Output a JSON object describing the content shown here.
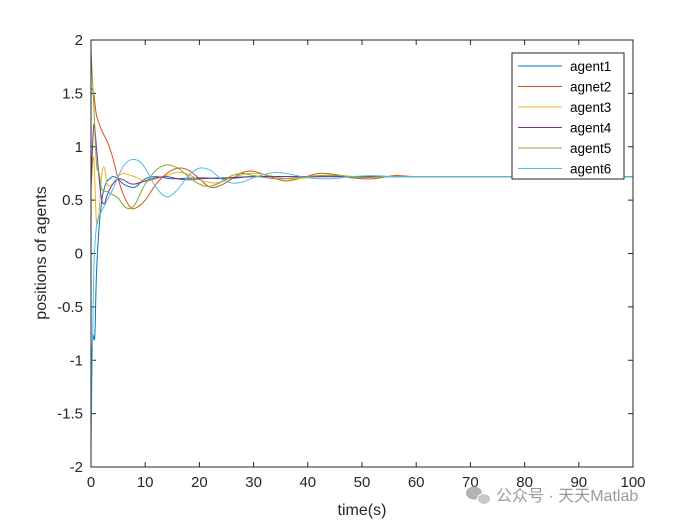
{
  "chart_data": {
    "type": "line",
    "xlabel": "time(s)",
    "ylabel": "positions of agents",
    "xlim": [
      0,
      100
    ],
    "ylim": [
      -2,
      2
    ],
    "xticks": [
      "0",
      "10",
      "20",
      "30",
      "40",
      "50",
      "60",
      "70",
      "80",
      "90",
      "100"
    ],
    "yticks": [
      "2",
      "1.5",
      "1",
      "0.5",
      "0",
      "-0.5",
      "-1",
      "-1.5",
      "-2"
    ],
    "grid": false,
    "legend_position": "top-right",
    "watermark": "公众号 · 天天Matlab",
    "series": [
      {
        "name": "agent1",
        "color": "#0072BD",
        "x": [
          0,
          0.3,
          0.7,
          1,
          1.5,
          2,
          2.5,
          3,
          3.5,
          4,
          5,
          6,
          8,
          10,
          12,
          15,
          20,
          25,
          30,
          40,
          50,
          60,
          70,
          80,
          100
        ],
        "y": [
          -1.45,
          -0.8,
          -0.78,
          -0.2,
          0.25,
          0.5,
          0.62,
          0.68,
          0.7,
          0.72,
          0.7,
          0.65,
          0.62,
          0.7,
          0.72,
          0.7,
          0.71,
          0.7,
          0.72,
          0.72,
          0.72,
          0.72,
          0.72,
          0.72,
          0.72
        ]
      },
      {
        "name": "agnet2",
        "color": "#D95319",
        "x": [
          0,
          0.5,
          1,
          2,
          3,
          4,
          5,
          6,
          7,
          8,
          10,
          12,
          14,
          16,
          18,
          20,
          22,
          24,
          26,
          28,
          30,
          33,
          36,
          39,
          42,
          45,
          48,
          52,
          56,
          60,
          70,
          80,
          100
        ],
        "y": [
          1.55,
          1.5,
          1.3,
          1.15,
          1.05,
          0.9,
          0.7,
          0.55,
          0.45,
          0.42,
          0.5,
          0.65,
          0.75,
          0.8,
          0.78,
          0.7,
          0.62,
          0.64,
          0.7,
          0.76,
          0.77,
          0.72,
          0.68,
          0.71,
          0.75,
          0.74,
          0.71,
          0.7,
          0.73,
          0.72,
          0.72,
          0.72,
          0.72
        ]
      },
      {
        "name": "agent3",
        "color": "#EDB120",
        "x": [
          0,
          0.5,
          1,
          1.5,
          2,
          2.5,
          3,
          4,
          5,
          6,
          8,
          10,
          12,
          14,
          16,
          18,
          20,
          23,
          26,
          29,
          32,
          36,
          40,
          45,
          50,
          60,
          70,
          80,
          100
        ],
        "y": [
          0.6,
          0.9,
          0.3,
          0.4,
          0.75,
          0.8,
          0.65,
          0.65,
          0.72,
          0.75,
          0.72,
          0.68,
          0.7,
          0.73,
          0.76,
          0.74,
          0.69,
          0.66,
          0.71,
          0.75,
          0.74,
          0.7,
          0.71,
          0.73,
          0.72,
          0.72,
          0.72,
          0.72,
          0.72
        ]
      },
      {
        "name": "agent4",
        "color": "#7E2F8E",
        "x": [
          0,
          0.5,
          1,
          1.5,
          2,
          2.5,
          3,
          4,
          5,
          6,
          7,
          8,
          10,
          12,
          14,
          16,
          18,
          20,
          25,
          30,
          40,
          50,
          60,
          70,
          80,
          100
        ],
        "y": [
          0.62,
          1.2,
          1.0,
          0.7,
          0.5,
          0.47,
          0.55,
          0.65,
          0.7,
          0.69,
          0.66,
          0.65,
          0.68,
          0.71,
          0.72,
          0.7,
          0.69,
          0.7,
          0.71,
          0.72,
          0.72,
          0.72,
          0.72,
          0.72,
          0.72,
          0.72
        ]
      },
      {
        "name": "agent5",
        "color": "#77AC30",
        "x": [
          0,
          0.5,
          1,
          1.5,
          2,
          3,
          4,
          5,
          6,
          7,
          8,
          9,
          10,
          12,
          14,
          16,
          18,
          20,
          22,
          24,
          26,
          28,
          30,
          34,
          38,
          42,
          46,
          50,
          55,
          60,
          70,
          80,
          100
        ],
        "y": [
          1.9,
          1.4,
          0.85,
          0.75,
          0.6,
          0.58,
          0.55,
          0.52,
          0.45,
          0.42,
          0.45,
          0.55,
          0.65,
          0.78,
          0.83,
          0.8,
          0.72,
          0.65,
          0.63,
          0.67,
          0.73,
          0.75,
          0.73,
          0.7,
          0.71,
          0.73,
          0.73,
          0.71,
          0.72,
          0.72,
          0.72,
          0.72,
          0.72
        ]
      },
      {
        "name": "agent6",
        "color": "#4DBEEE",
        "x": [
          0,
          0.5,
          1,
          1.5,
          2,
          3,
          4,
          5,
          6,
          7,
          8,
          9,
          10,
          12,
          14,
          16,
          18,
          20,
          22,
          24,
          26,
          28,
          30,
          32,
          34,
          36,
          38,
          40,
          44,
          48,
          52,
          56,
          60,
          70,
          80,
          100
        ],
        "y": [
          -1.78,
          -0.2,
          0.25,
          0.35,
          0.4,
          0.5,
          0.6,
          0.72,
          0.82,
          0.87,
          0.88,
          0.86,
          0.8,
          0.62,
          0.53,
          0.6,
          0.73,
          0.8,
          0.78,
          0.7,
          0.66,
          0.67,
          0.71,
          0.74,
          0.76,
          0.75,
          0.73,
          0.71,
          0.7,
          0.72,
          0.73,
          0.72,
          0.72,
          0.72,
          0.72,
          0.72
        ]
      }
    ]
  }
}
